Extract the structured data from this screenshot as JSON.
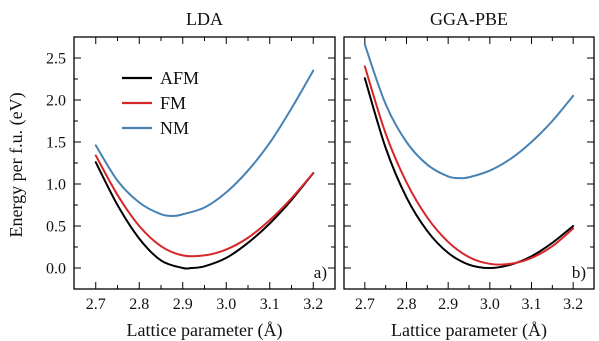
{
  "ylabel": "Energy per f.u. (eV)",
  "legend": [
    {
      "label": "AFM",
      "color": "#000000"
    },
    {
      "label": "FM",
      "color": "#d62728"
    },
    {
      "label": "NM",
      "color": "#4682b4"
    }
  ],
  "chart_data": [
    {
      "type": "line",
      "title": "LDA",
      "panel_label": "a)",
      "xlabel": "Lattice parameter (Å)",
      "ylabel": "Energy per f.u. (eV)",
      "xlim": [
        2.65,
        3.25
      ],
      "ylim": [
        -0.25,
        2.75
      ],
      "xticks": [
        2.7,
        2.8,
        2.9,
        3.0,
        3.1,
        3.2
      ],
      "yticks": [
        0.0,
        0.5,
        1.0,
        1.5,
        2.0,
        2.5
      ],
      "legend_position": "top-left",
      "series": [
        {
          "name": "AFM",
          "color": "#000000",
          "x": [
            2.7,
            2.75,
            2.8,
            2.85,
            2.9,
            2.92,
            2.95,
            3.0,
            3.05,
            3.1,
            3.15,
            3.2
          ],
          "y": [
            1.26,
            0.75,
            0.35,
            0.09,
            0.0,
            0.0,
            0.02,
            0.12,
            0.3,
            0.53,
            0.81,
            1.13
          ]
        },
        {
          "name": "FM",
          "color": "#d62728",
          "x": [
            2.7,
            2.75,
            2.8,
            2.85,
            2.9,
            2.95,
            3.0,
            3.05,
            3.1,
            3.15,
            3.2
          ],
          "y": [
            1.34,
            0.87,
            0.5,
            0.26,
            0.15,
            0.15,
            0.22,
            0.36,
            0.57,
            0.83,
            1.13
          ]
        },
        {
          "name": "NM",
          "color": "#4682b4",
          "x": [
            2.7,
            2.75,
            2.8,
            2.85,
            2.88,
            2.9,
            2.95,
            3.0,
            3.05,
            3.1,
            3.15,
            3.2
          ],
          "y": [
            1.46,
            1.04,
            0.78,
            0.64,
            0.62,
            0.64,
            0.72,
            0.9,
            1.16,
            1.49,
            1.9,
            2.35
          ]
        }
      ]
    },
    {
      "type": "line",
      "title": "GGA-PBE",
      "panel_label": "b)",
      "xlabel": "Lattice parameter (Å)",
      "xlim": [
        2.65,
        3.25
      ],
      "ylim": [
        -0.25,
        2.75
      ],
      "xticks": [
        2.7,
        2.8,
        2.9,
        3.0,
        3.1,
        3.2
      ],
      "series": [
        {
          "name": "AFM",
          "color": "#000000",
          "x": [
            2.7,
            2.75,
            2.8,
            2.85,
            2.9,
            2.95,
            3.0,
            3.05,
            3.1,
            3.15,
            3.2
          ],
          "y": [
            2.26,
            1.43,
            0.84,
            0.44,
            0.18,
            0.04,
            0.0,
            0.04,
            0.14,
            0.3,
            0.5
          ]
        },
        {
          "name": "FM",
          "color": "#d62728",
          "x": [
            2.7,
            2.75,
            2.8,
            2.85,
            2.9,
            2.95,
            3.0,
            3.05,
            3.1,
            3.15,
            3.2
          ],
          "y": [
            2.4,
            1.6,
            1.02,
            0.6,
            0.31,
            0.13,
            0.05,
            0.05,
            0.12,
            0.26,
            0.47
          ]
        },
        {
          "name": "NM",
          "color": "#4682b4",
          "x": [
            2.7,
            2.75,
            2.8,
            2.85,
            2.9,
            2.93,
            2.95,
            3.0,
            3.05,
            3.1,
            3.15,
            3.2
          ],
          "y": [
            2.66,
            1.95,
            1.5,
            1.23,
            1.09,
            1.07,
            1.08,
            1.16,
            1.3,
            1.5,
            1.75,
            2.05
          ]
        }
      ]
    }
  ]
}
